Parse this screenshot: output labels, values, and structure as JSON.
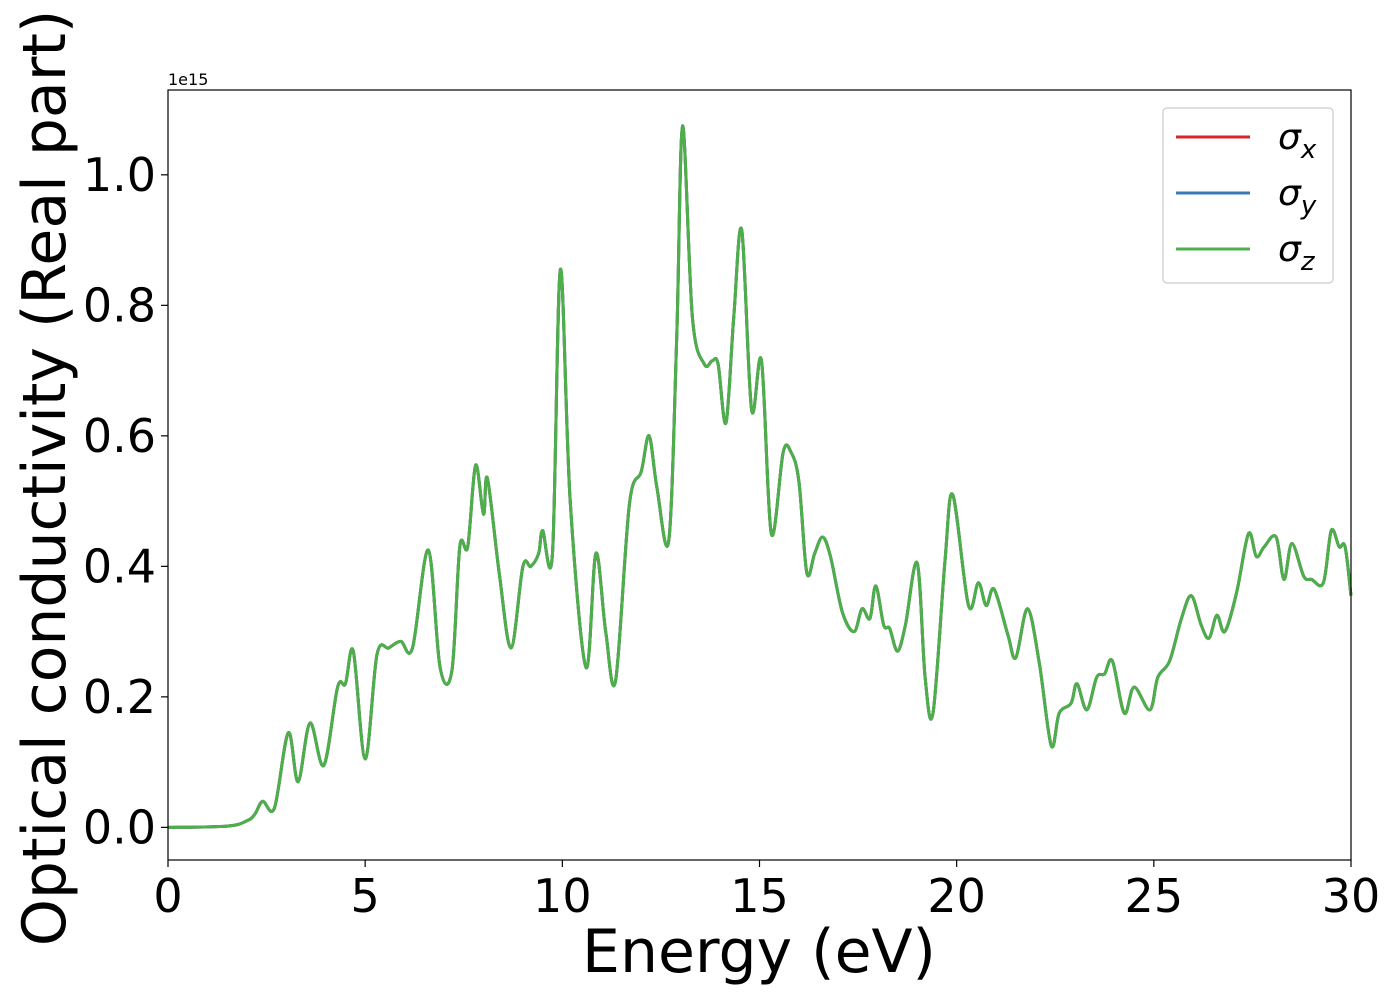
{
  "chart_data": {
    "type": "line",
    "xlabel": "Energy (eV)",
    "ylabel": "Optical conductivity (Real part)",
    "y_offset_text": "1e15",
    "y_scale": 1000000000000000.0,
    "xlim": [
      0,
      30
    ],
    "ylim": [
      -0.05,
      1.13
    ],
    "x_ticks": [
      0,
      5,
      10,
      15,
      20,
      25,
      30
    ],
    "x_tick_labels": [
      "0",
      "5",
      "10",
      "15",
      "20",
      "25",
      "30"
    ],
    "y_ticks": [
      0.0,
      0.2,
      0.4,
      0.6,
      0.8,
      1.0
    ],
    "y_tick_labels": [
      "0.0",
      "0.2",
      "0.4",
      "0.6",
      "0.8",
      "1.0"
    ],
    "grid": false,
    "legend_position": "top-right",
    "colors": {
      "sigma_x": "#d62728",
      "sigma_y": "#3b7bb4",
      "sigma_z": "#4daf4a"
    },
    "series": [
      {
        "name": "σx",
        "symbol": "σ",
        "subscript": "x",
        "color": "#d62728",
        "same_as": "σz"
      },
      {
        "name": "σy",
        "symbol": "σ",
        "subscript": "y",
        "color": "#3b7bb4",
        "same_as": "σz"
      },
      {
        "name": "σz",
        "symbol": "σ",
        "subscript": "z",
        "color": "#4daf4a"
      }
    ],
    "x": [
      0,
      1.5,
      2.0,
      2.2,
      2.4,
      2.7,
      3.05,
      3.3,
      3.6,
      3.95,
      4.3,
      4.5,
      4.7,
      5.0,
      5.3,
      5.6,
      5.9,
      6.2,
      6.6,
      6.9,
      7.2,
      7.4,
      7.6,
      7.8,
      8.0,
      8.1,
      8.4,
      8.7,
      9.0,
      9.2,
      9.4,
      9.5,
      9.75,
      9.95,
      10.2,
      10.6,
      10.85,
      11.1,
      11.35,
      11.7,
      12.0,
      12.2,
      12.4,
      12.7,
      12.9,
      13.05,
      13.3,
      13.6,
      13.8,
      13.95,
      14.15,
      14.35,
      14.55,
      14.8,
      15.05,
      15.3,
      15.6,
      15.8,
      16.0,
      16.2,
      16.4,
      16.6,
      16.8,
      17.1,
      17.4,
      17.6,
      17.8,
      17.95,
      18.15,
      18.3,
      18.5,
      18.7,
      19.0,
      19.2,
      19.4,
      19.7,
      19.9,
      20.3,
      20.55,
      20.75,
      20.95,
      21.3,
      21.5,
      21.8,
      22.1,
      22.4,
      22.6,
      22.9,
      23.05,
      23.3,
      23.55,
      23.75,
      23.95,
      24.25,
      24.5,
      24.9,
      25.1,
      25.4,
      25.7,
      25.95,
      26.2,
      26.4,
      26.6,
      26.8,
      27.1,
      27.4,
      27.6,
      27.8,
      28.1,
      28.3,
      28.5,
      28.8,
      29.0,
      29.3,
      29.5,
      29.7,
      29.85,
      30.0
    ],
    "y": [
      0.0,
      0.002,
      0.01,
      0.02,
      0.04,
      0.03,
      0.145,
      0.07,
      0.16,
      0.095,
      0.215,
      0.22,
      0.27,
      0.105,
      0.265,
      0.275,
      0.285,
      0.275,
      0.425,
      0.245,
      0.24,
      0.43,
      0.43,
      0.555,
      0.48,
      0.535,
      0.39,
      0.275,
      0.4,
      0.4,
      0.42,
      0.455,
      0.42,
      0.855,
      0.5,
      0.245,
      0.42,
      0.3,
      0.225,
      0.495,
      0.545,
      0.6,
      0.52,
      0.44,
      0.75,
      1.075,
      0.78,
      0.71,
      0.715,
      0.71,
      0.62,
      0.785,
      0.915,
      0.64,
      0.715,
      0.45,
      0.575,
      0.575,
      0.53,
      0.39,
      0.42,
      0.445,
      0.415,
      0.33,
      0.3,
      0.335,
      0.32,
      0.37,
      0.31,
      0.305,
      0.27,
      0.31,
      0.405,
      0.23,
      0.175,
      0.405,
      0.51,
      0.34,
      0.375,
      0.34,
      0.365,
      0.295,
      0.26,
      0.335,
      0.25,
      0.125,
      0.175,
      0.19,
      0.22,
      0.18,
      0.23,
      0.235,
      0.255,
      0.175,
      0.215,
      0.18,
      0.23,
      0.255,
      0.32,
      0.355,
      0.31,
      0.29,
      0.325,
      0.3,
      0.36,
      0.45,
      0.415,
      0.43,
      0.445,
      0.38,
      0.435,
      0.385,
      0.38,
      0.375,
      0.455,
      0.43,
      0.43,
      0.355
    ]
  }
}
